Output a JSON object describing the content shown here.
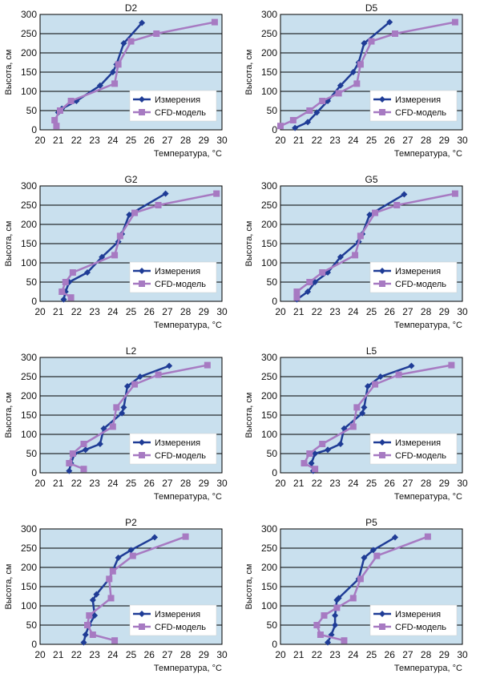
{
  "colors": {
    "plot_bg": "#c9e0ee",
    "grid": "#000000",
    "measure": "#1f3c96",
    "cfd": "#a77ac2"
  },
  "chart_data": [
    {
      "type": "line",
      "title": "D2",
      "xlabel": "Температура, °C",
      "ylabel": "Высота, см",
      "xlim": [
        20,
        30
      ],
      "ylim": [
        0,
        300
      ],
      "xticks": [
        "20",
        "21",
        "22",
        "23",
        "24",
        "25",
        "26",
        "27",
        "28",
        "29",
        "30"
      ],
      "yticks": [
        "0",
        "50",
        "100",
        "150",
        "200",
        "250",
        "300"
      ],
      "legend": [
        "Измерения",
        "CFD-модель"
      ],
      "series": [
        {
          "name": "Измерения",
          "x": [
            21,
            21.2,
            22,
            23.3,
            24,
            24.2,
            24.6,
            25.6
          ],
          "y": [
            45,
            55,
            75,
            115,
            150,
            170,
            225,
            278
          ]
        },
        {
          "name": "CFD-модель",
          "x": [
            20.9,
            20.8,
            21.1,
            21.7,
            24.1,
            24.3,
            25,
            26.4,
            29.6
          ],
          "y": [
            10,
            25,
            50,
            75,
            120,
            170,
            230,
            250,
            280
          ]
        }
      ]
    },
    {
      "type": "line",
      "title": "D5",
      "xlabel": "Температура, °C",
      "ylabel": "Высота, см",
      "xlim": [
        20,
        30
      ],
      "ylim": [
        0,
        300
      ],
      "xticks": [
        "20",
        "21",
        "22",
        "23",
        "24",
        "25",
        "26",
        "27",
        "28",
        "29",
        "30"
      ],
      "yticks": [
        "0",
        "50",
        "100",
        "150",
        "200",
        "250",
        "300"
      ],
      "legend": [
        "Измерения",
        "CFD-модель"
      ],
      "series": [
        {
          "name": "Измерения",
          "x": [
            20.8,
            21.5,
            22,
            22.6,
            23.3,
            24,
            24.3,
            24.6,
            26
          ],
          "y": [
            5,
            20,
            45,
            75,
            115,
            150,
            175,
            225,
            280
          ]
        },
        {
          "name": "CFD-модель",
          "x": [
            20,
            20.7,
            21.6,
            22.3,
            23.2,
            24.2,
            24.4,
            25,
            26.3,
            29.6
          ],
          "y": [
            10,
            25,
            50,
            75,
            95,
            120,
            170,
            230,
            250,
            280
          ]
        }
      ]
    },
    {
      "type": "line",
      "title": "G2",
      "xlabel": "Температура, °C",
      "ylabel": "Высота, см",
      "xlim": [
        20,
        30
      ],
      "ylim": [
        0,
        300
      ],
      "xticks": [
        "20",
        "21",
        "22",
        "23",
        "24",
        "25",
        "26",
        "27",
        "28",
        "29",
        "30"
      ],
      "yticks": [
        "0",
        "50",
        "100",
        "150",
        "200",
        "250",
        "300"
      ],
      "legend": [
        "Измерения",
        "CFD-модель"
      ],
      "series": [
        {
          "name": "Измерения",
          "x": [
            21.3,
            21.4,
            21.6,
            22.6,
            23.4,
            24.3,
            24.5,
            24.9,
            26.9
          ],
          "y": [
            5,
            25,
            50,
            75,
            115,
            155,
            175,
            225,
            280
          ]
        },
        {
          "name": "CFD-модель",
          "x": [
            21.7,
            21.2,
            21.4,
            21.8,
            24.1,
            24.4,
            25.2,
            26.5,
            29.7
          ],
          "y": [
            10,
            25,
            50,
            75,
            120,
            170,
            230,
            250,
            280
          ]
        }
      ]
    },
    {
      "type": "line",
      "title": "G5",
      "xlabel": "Температура, °C",
      "ylabel": "Высота, см",
      "xlim": [
        20,
        30
      ],
      "ylim": [
        0,
        300
      ],
      "xticks": [
        "20",
        "21",
        "22",
        "23",
        "24",
        "25",
        "26",
        "27",
        "28",
        "29",
        "30"
      ],
      "yticks": [
        "0",
        "50",
        "100",
        "150",
        "200",
        "250",
        "300"
      ],
      "legend": [
        "Измерения",
        "CFD-модель"
      ],
      "series": [
        {
          "name": "Измерения",
          "x": [
            20.9,
            21.5,
            21.9,
            22.6,
            23.3,
            24.3,
            24.5,
            24.9,
            26.8
          ],
          "y": [
            5,
            25,
            50,
            75,
            115,
            155,
            175,
            225,
            278
          ]
        },
        {
          "name": "CFD-модель",
          "x": [
            20.9,
            20.9,
            21.6,
            22.3,
            24.1,
            24.4,
            25.2,
            26.4,
            29.6
          ],
          "y": [
            10,
            25,
            50,
            75,
            120,
            170,
            230,
            250,
            280
          ]
        }
      ]
    },
    {
      "type": "line",
      "title": "L2",
      "xlabel": "Температура, °C",
      "ylabel": "Высота, см",
      "xlim": [
        20,
        30
      ],
      "ylim": [
        0,
        300
      ],
      "xticks": [
        "20",
        "21",
        "22",
        "23",
        "24",
        "25",
        "26",
        "27",
        "28",
        "29",
        "30"
      ],
      "yticks": [
        "0",
        "50",
        "100",
        "150",
        "200",
        "250",
        "300"
      ],
      "legend": [
        "Измерения",
        "CFD-модель"
      ],
      "series": [
        {
          "name": "Измерения",
          "x": [
            21.6,
            21.7,
            21.9,
            22.5,
            23.3,
            23.5,
            24.5,
            24.6,
            24.8,
            25.5,
            27.1
          ],
          "y": [
            5,
            25,
            50,
            60,
            75,
            115,
            155,
            170,
            225,
            250,
            278
          ]
        },
        {
          "name": "CFD-модель",
          "x": [
            22.4,
            21.6,
            21.8,
            22.4,
            24,
            24.2,
            25.2,
            26.5,
            29.2
          ],
          "y": [
            10,
            25,
            50,
            75,
            120,
            170,
            230,
            255,
            280
          ]
        }
      ]
    },
    {
      "type": "line",
      "title": "L5",
      "xlabel": "Температура, °C",
      "ylabel": "Высота, см",
      "xlim": [
        20,
        30
      ],
      "ylim": [
        0,
        300
      ],
      "xticks": [
        "20",
        "21",
        "22",
        "23",
        "24",
        "25",
        "26",
        "27",
        "28",
        "29",
        "30"
      ],
      "yticks": [
        "0",
        "50",
        "100",
        "150",
        "200",
        "250",
        "300"
      ],
      "legend": [
        "Измерения",
        "CFD-модель"
      ],
      "series": [
        {
          "name": "Измерения",
          "x": [
            21.8,
            21.7,
            21.9,
            22.6,
            23.3,
            23.5,
            24.5,
            24.6,
            24.8,
            25.5,
            27.2
          ],
          "y": [
            5,
            25,
            50,
            60,
            75,
            115,
            155,
            170,
            225,
            250,
            278
          ]
        },
        {
          "name": "CFD-модель",
          "x": [
            21.9,
            21.3,
            21.6,
            22.3,
            24,
            24.2,
            25.2,
            26.5,
            29.4
          ],
          "y": [
            10,
            25,
            50,
            75,
            120,
            170,
            230,
            255,
            280
          ]
        }
      ]
    },
    {
      "type": "line",
      "title": "P2",
      "xlabel": "Температура, °C",
      "ylabel": "Высота, см",
      "xlim": [
        20,
        30
      ],
      "ylim": [
        0,
        300
      ],
      "xticks": [
        "20",
        "21",
        "22",
        "23",
        "24",
        "25",
        "26",
        "27",
        "28",
        "29",
        "30"
      ],
      "yticks": [
        "0",
        "50",
        "100",
        "150",
        "200",
        "250",
        "300"
      ],
      "legend": [
        "Измерения",
        "CFD-модель"
      ],
      "series": [
        {
          "name": "Измерения",
          "x": [
            22.4,
            22.5,
            22.7,
            23,
            22.9,
            23.1,
            23.8,
            24.3,
            25,
            26.3
          ],
          "y": [
            5,
            25,
            50,
            75,
            115,
            130,
            170,
            225,
            245,
            278
          ]
        },
        {
          "name": "CFD-модель",
          "x": [
            24.1,
            22.9,
            22.6,
            22.7,
            23.9,
            23.8,
            24,
            25.1,
            28
          ],
          "y": [
            10,
            25,
            50,
            75,
            120,
            170,
            190,
            230,
            280
          ]
        }
      ]
    },
    {
      "type": "line",
      "title": "P5",
      "xlabel": "Температура, °C",
      "ylabel": "Высота, см",
      "xlim": [
        20,
        30
      ],
      "ylim": [
        0,
        300
      ],
      "xticks": [
        "20",
        "21",
        "22",
        "23",
        "24",
        "25",
        "26",
        "27",
        "28",
        "29",
        "30"
      ],
      "yticks": [
        "0",
        "50",
        "100",
        "150",
        "200",
        "250",
        "300"
      ],
      "legend": [
        "Измерения",
        "CFD-модель"
      ],
      "series": [
        {
          "name": "Измерения",
          "x": [
            22.6,
            22.8,
            23,
            23,
            23.1,
            23.2,
            24.3,
            24.6,
            25.1,
            26.3
          ],
          "y": [
            5,
            25,
            50,
            75,
            115,
            120,
            170,
            225,
            245,
            278
          ]
        },
        {
          "name": "CFD-модель",
          "x": [
            23.5,
            22.2,
            22,
            22.4,
            23.1,
            24,
            24.4,
            25.3,
            28.1
          ],
          "y": [
            10,
            25,
            50,
            75,
            95,
            120,
            170,
            230,
            280
          ]
        }
      ]
    }
  ]
}
